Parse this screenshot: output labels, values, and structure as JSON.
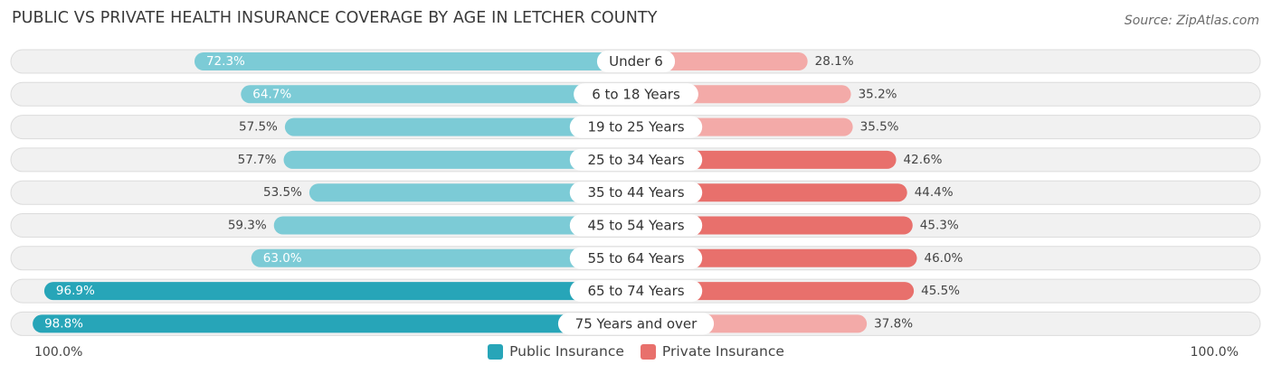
{
  "header": {
    "title": "PUBLIC VS PRIVATE HEALTH INSURANCE COVERAGE BY AGE IN LETCHER COUNTY",
    "source": "Source: ZipAtlas.com"
  },
  "axis": {
    "left_label": "100.0%",
    "right_label": "100.0%"
  },
  "legend": {
    "public_label": "Public Insurance",
    "private_label": "Private Insurance"
  },
  "colors": {
    "public_dark": "#27a5b8",
    "public_light": "#7ccbd6",
    "private_dark": "#e8706c",
    "private_light": "#f3aaa8",
    "row_bg": "#f1f1f1",
    "row_border": "#dcdcdc"
  },
  "chart_data": {
    "type": "bar",
    "orientation": "horizontal-diverging",
    "title": "PUBLIC VS PRIVATE HEALTH INSURANCE COVERAGE BY AGE IN LETCHER COUNTY",
    "categories": [
      "Under 6",
      "6 to 18 Years",
      "19 to 25 Years",
      "25 to 34 Years",
      "35 to 44 Years",
      "45 to 54 Years",
      "55 to 64 Years",
      "65 to 74 Years",
      "75 Years and over"
    ],
    "series": [
      {
        "name": "Public Insurance",
        "values": [
          72.3,
          64.7,
          57.5,
          57.7,
          53.5,
          59.3,
          63.0,
          96.9,
          98.8
        ],
        "labels": [
          "72.3%",
          "64.7%",
          "57.5%",
          "57.7%",
          "53.5%",
          "59.3%",
          "63.0%",
          "96.9%",
          "98.8%"
        ]
      },
      {
        "name": "Private Insurance",
        "values": [
          28.1,
          35.2,
          35.5,
          42.6,
          44.4,
          45.3,
          46.0,
          45.5,
          37.8
        ],
        "labels": [
          "28.1%",
          "35.2%",
          "35.5%",
          "42.6%",
          "44.4%",
          "45.3%",
          "46.0%",
          "45.5%",
          "37.8%"
        ]
      }
    ],
    "xlim": [
      0,
      100
    ],
    "legend_position": "bottom-center"
  }
}
